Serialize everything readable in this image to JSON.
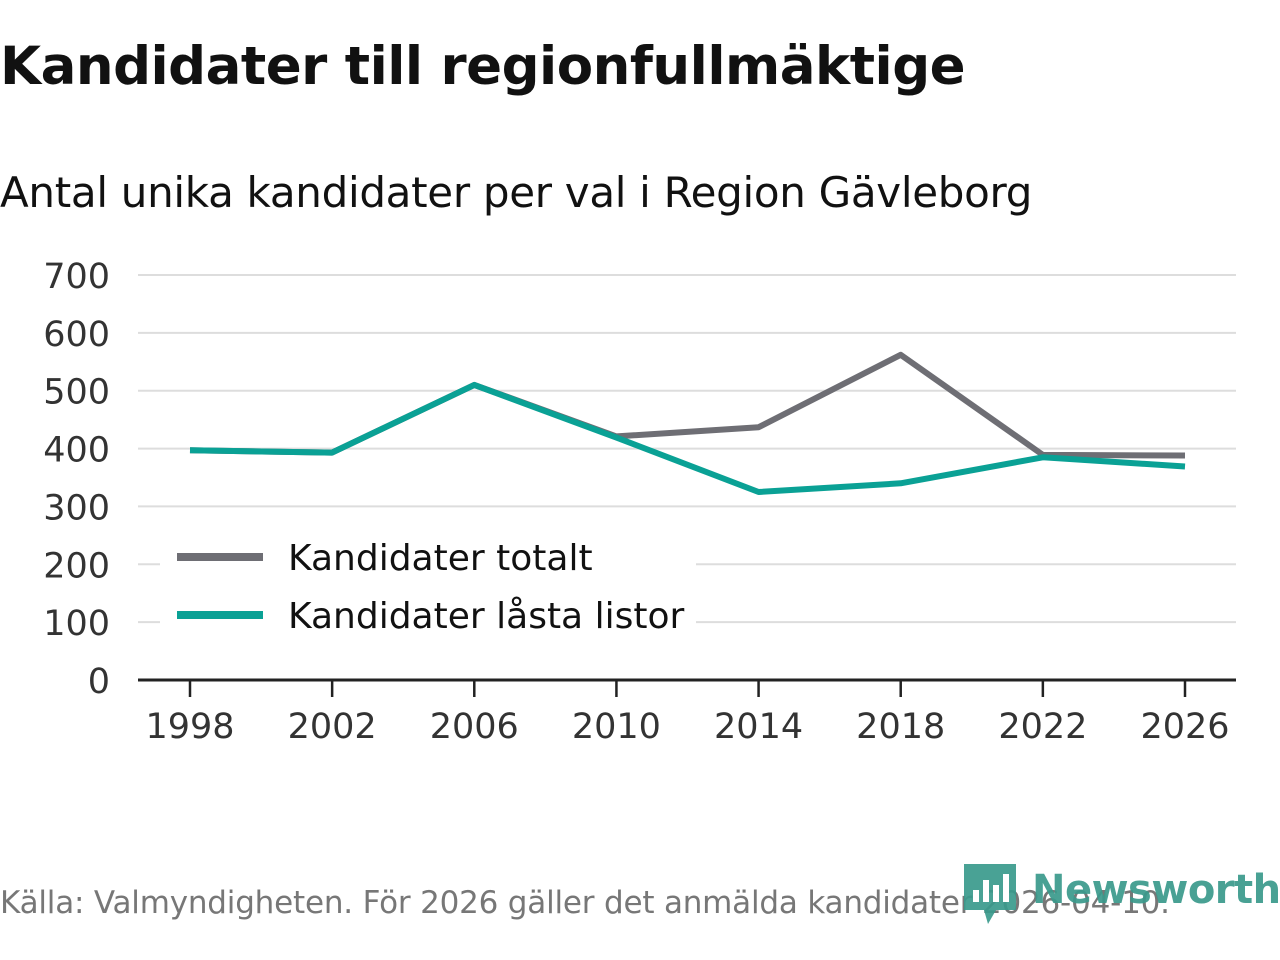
{
  "title": "Kandidater till regionfullmäktige",
  "subtitle": "Antal unika kandidater per val i Region Gävleborg",
  "source": "Källa: Valmyndigheten. För 2026 gäller det anmälda kandidater 2026-04-10.",
  "brand": "Newsworthy",
  "chart_data": {
    "type": "line",
    "categories": [
      "1998",
      "2002",
      "2006",
      "2010",
      "2014",
      "2018",
      "2022",
      "2026"
    ],
    "x": [
      1998,
      2002,
      2006,
      2010,
      2014,
      2018,
      2022,
      2026
    ],
    "series": [
      {
        "name": "Kandidater totalt",
        "color": "#6e6e74",
        "values": [
          397,
          393,
          510,
          421,
          437,
          562,
          389,
          388
        ]
      },
      {
        "name": "Kandidater låsta listor",
        "color": "#0aa195",
        "values": [
          397,
          393,
          510,
          419,
          325,
          340,
          385,
          369
        ]
      }
    ],
    "ylim": [
      0,
      700
    ],
    "yticks": [
      0,
      100,
      200,
      300,
      400,
      500,
      600,
      700
    ],
    "xlabel": "",
    "ylabel": "",
    "grid": true,
    "legend": "bottom-left"
  }
}
